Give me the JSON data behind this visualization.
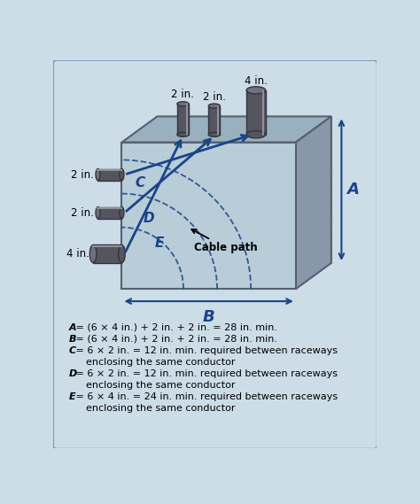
{
  "bg_color": "#ccdde8",
  "border_color": "#7a9ab5",
  "box_front_color": "#b8cdd8",
  "box_top_color": "#9ab0be",
  "box_right_color": "#8898a8",
  "box_edge_color": "#556070",
  "dashed_back_color": "#7090a8",
  "arrow_color": "#1a4488",
  "dim_arrow_color": "#1a4488",
  "dashed_arc_color": "#1a4488",
  "conduit_body_color": "#555560",
  "conduit_top_color": "#707080",
  "conduit_edge_color": "#333340",
  "left_labels": [
    "2 in.",
    "2 in.",
    "4 in."
  ],
  "top_labels": [
    "2 in.",
    "2 in.",
    "4 in."
  ],
  "formula_lines_italic": [
    "A",
    "B",
    "C",
    "D",
    "E"
  ],
  "formula_line1": " = (6 × 4 in.) + 2 in. + 2 in. = 28 in. min.",
  "formula_line2": " = (6 × 4 in.) + 2 in. + 2 in. = 28 in. min.",
  "formula_line3": " = 6 × 2 in. = 12 in. min. required between raceways",
  "formula_cont3": "enclosing the same conductor",
  "formula_line4": " = 6 × 2 in. = 12 in. min. required between raceways",
  "formula_cont4": "enclosing the same conductor",
  "formula_line5": " = 6 × 4 in. = 24 in. min. required between raceways",
  "formula_cont5": "enclosing the same conductor"
}
